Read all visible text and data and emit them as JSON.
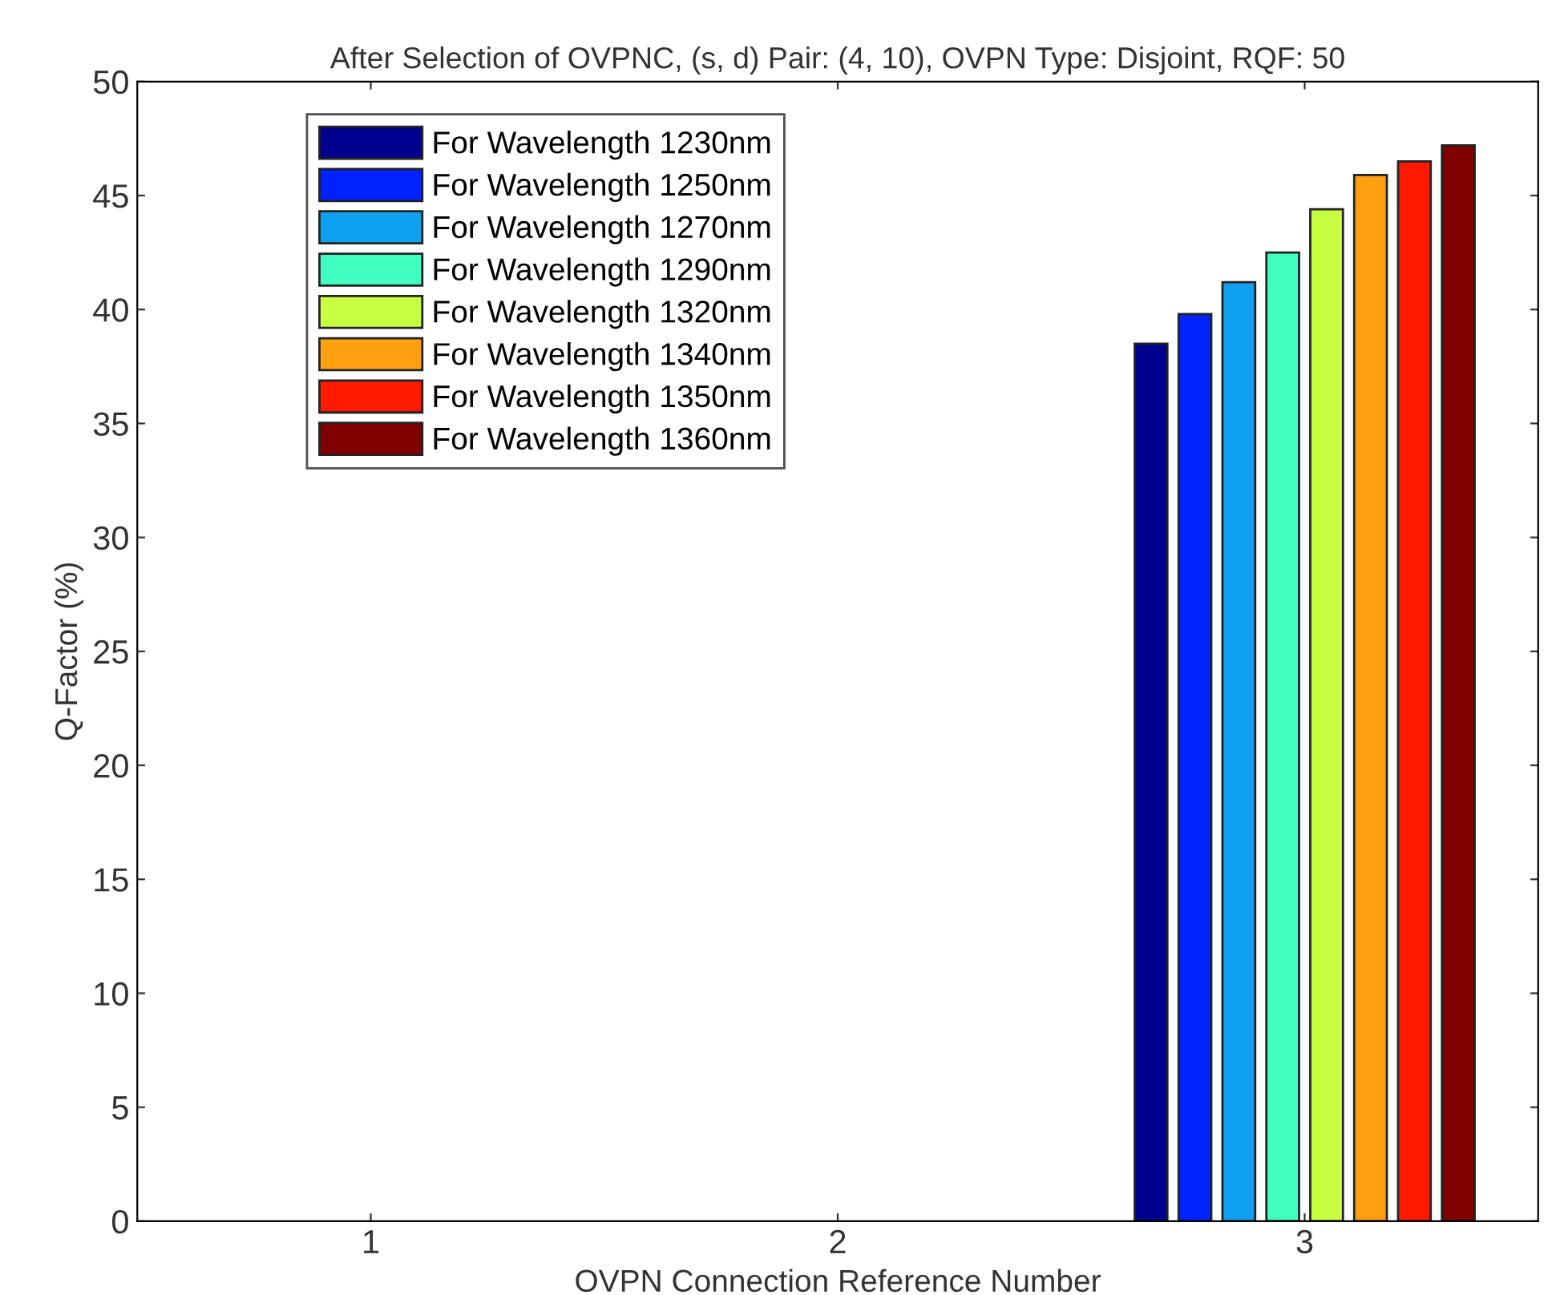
{
  "chart_data": {
    "type": "bar",
    "title": "After Selection of OVPNC, (s, d) Pair: (4, 10), OVPN Type: Disjoint, RQF: 50",
    "xlabel": "OVPN Connection Reference Number",
    "ylabel": "Q-Factor (%)",
    "categories": [
      "1",
      "2",
      "3"
    ],
    "series": [
      {
        "name": "For Wavelength 1230nm",
        "color": "#00008f",
        "values": [
          null,
          null,
          38.5
        ]
      },
      {
        "name": "For Wavelength 1250nm",
        "color": "#0022ff",
        "values": [
          null,
          null,
          39.8
        ]
      },
      {
        "name": "For Wavelength 1270nm",
        "color": "#10a0f0",
        "values": [
          null,
          null,
          41.2
        ]
      },
      {
        "name": "For Wavelength 1290nm",
        "color": "#40ffc0",
        "values": [
          null,
          null,
          42.5
        ]
      },
      {
        "name": "For Wavelength 1320nm",
        "color": "#c8ff40",
        "values": [
          null,
          null,
          44.4
        ]
      },
      {
        "name": "For Wavelength 1340nm",
        "color": "#ffa010",
        "values": [
          null,
          null,
          45.9
        ]
      },
      {
        "name": "For Wavelength 1350nm",
        "color": "#ff1a00",
        "values": [
          null,
          null,
          46.5
        ]
      },
      {
        "name": "For Wavelength 1360nm",
        "color": "#800000",
        "values": [
          null,
          null,
          47.2
        ]
      }
    ],
    "ylim": [
      0,
      50
    ],
    "yticks": [
      0,
      5,
      10,
      15,
      20,
      25,
      30,
      35,
      40,
      45,
      50
    ],
    "grid": false,
    "legend": "top left"
  }
}
